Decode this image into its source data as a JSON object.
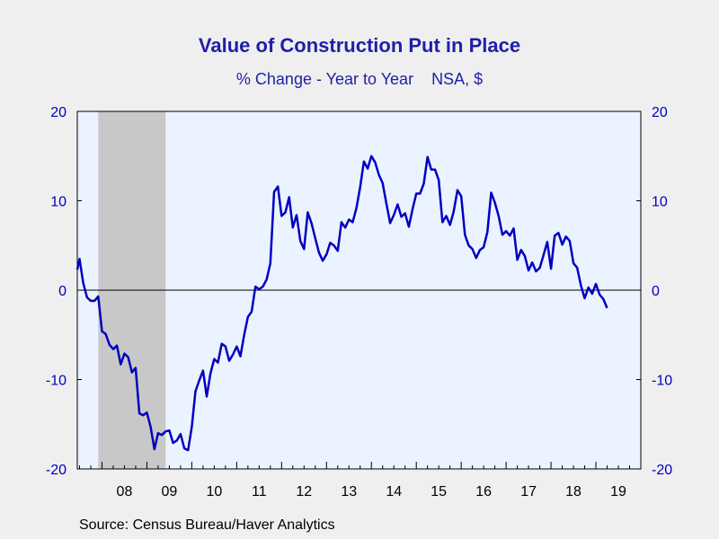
{
  "title": "Value of Construction Put in Place",
  "subtitle": "% Change - Year to Year    NSA, $",
  "source": "Source:  Census Bureau/Haver Analytics",
  "colors": {
    "line": "#0000c0",
    "plot_background": "#eaf3ff",
    "recession": "#c8c8c8",
    "axis_text": "#0000c0",
    "x_text": "#000000"
  },
  "chart_data": {
    "type": "line",
    "title": "Value of Construction Put in Place",
    "subtitle": "% Change - Year to Year    NSA, $",
    "xlabel": "",
    "ylabel": "",
    "xlim": [
      2007.45,
      2020.0
    ],
    "ylim": [
      -20,
      20
    ],
    "yticks": [
      -20,
      -10,
      0,
      10,
      20
    ],
    "ytick_labels": [
      "-20",
      "-10",
      "0",
      "10",
      "20"
    ],
    "xtick_labels": [
      "08",
      "09",
      "10",
      "11",
      "12",
      "13",
      "14",
      "15",
      "16",
      "17",
      "18",
      "19"
    ],
    "grid": false,
    "zero_line": true,
    "recession_shading": [
      [
        2007.917,
        2009.417
      ]
    ],
    "series": [
      {
        "values": [
          [
            2007.45,
            2.3
          ],
          [
            2007.5,
            3.5
          ],
          [
            2007.583,
            0.8
          ],
          [
            2007.667,
            -0.8
          ],
          [
            2007.75,
            -1.2
          ],
          [
            2007.833,
            -1.2
          ],
          [
            2007.917,
            -0.7
          ],
          [
            2008.0,
            -4.6
          ],
          [
            2008.083,
            -4.9
          ],
          [
            2008.167,
            -6.1
          ],
          [
            2008.25,
            -6.6
          ],
          [
            2008.333,
            -6.2
          ],
          [
            2008.417,
            -8.3
          ],
          [
            2008.5,
            -7.1
          ],
          [
            2008.583,
            -7.5
          ],
          [
            2008.667,
            -9.2
          ],
          [
            2008.75,
            -8.7
          ],
          [
            2008.833,
            -13.8
          ],
          [
            2008.917,
            -14.0
          ],
          [
            2009.0,
            -13.7
          ],
          [
            2009.083,
            -15.3
          ],
          [
            2009.167,
            -17.8
          ],
          [
            2009.25,
            -16.0
          ],
          [
            2009.333,
            -16.2
          ],
          [
            2009.417,
            -15.8
          ],
          [
            2009.5,
            -15.7
          ],
          [
            2009.583,
            -17.1
          ],
          [
            2009.667,
            -16.8
          ],
          [
            2009.75,
            -16.1
          ],
          [
            2009.833,
            -17.7
          ],
          [
            2009.917,
            -17.9
          ],
          [
            2010.0,
            -15.3
          ],
          [
            2010.083,
            -11.3
          ],
          [
            2010.167,
            -10.1
          ],
          [
            2010.25,
            -9.0
          ],
          [
            2010.333,
            -11.9
          ],
          [
            2010.417,
            -9.3
          ],
          [
            2010.5,
            -7.7
          ],
          [
            2010.583,
            -8.1
          ],
          [
            2010.667,
            -6.0
          ],
          [
            2010.75,
            -6.3
          ],
          [
            2010.833,
            -7.9
          ],
          [
            2010.917,
            -7.2
          ],
          [
            2011.0,
            -6.3
          ],
          [
            2011.083,
            -7.4
          ],
          [
            2011.167,
            -5.0
          ],
          [
            2011.25,
            -3.0
          ],
          [
            2011.333,
            -2.4
          ],
          [
            2011.417,
            0.4
          ],
          [
            2011.5,
            0.1
          ],
          [
            2011.583,
            0.4
          ],
          [
            2011.667,
            1.2
          ],
          [
            2011.75,
            3.0
          ],
          [
            2011.833,
            11.0
          ],
          [
            2011.917,
            11.6
          ],
          [
            2012.0,
            8.3
          ],
          [
            2012.083,
            8.7
          ],
          [
            2012.167,
            10.4
          ],
          [
            2012.25,
            7.0
          ],
          [
            2012.333,
            8.4
          ],
          [
            2012.417,
            5.5
          ],
          [
            2012.5,
            4.6
          ],
          [
            2012.583,
            8.7
          ],
          [
            2012.667,
            7.5
          ],
          [
            2012.75,
            5.8
          ],
          [
            2012.833,
            4.2
          ],
          [
            2012.917,
            3.3
          ],
          [
            2013.0,
            4.0
          ],
          [
            2013.083,
            5.3
          ],
          [
            2013.167,
            5.0
          ],
          [
            2013.25,
            4.4
          ],
          [
            2013.333,
            7.6
          ],
          [
            2013.417,
            7.0
          ],
          [
            2013.5,
            7.9
          ],
          [
            2013.583,
            7.6
          ],
          [
            2013.667,
            9.2
          ],
          [
            2013.75,
            11.5
          ],
          [
            2013.833,
            14.4
          ],
          [
            2013.917,
            13.6
          ],
          [
            2014.0,
            15.0
          ],
          [
            2014.083,
            14.3
          ],
          [
            2014.167,
            12.9
          ],
          [
            2014.25,
            12.0
          ],
          [
            2014.333,
            9.7
          ],
          [
            2014.417,
            7.5
          ],
          [
            2014.5,
            8.4
          ],
          [
            2014.583,
            9.6
          ],
          [
            2014.667,
            8.2
          ],
          [
            2014.75,
            8.6
          ],
          [
            2014.833,
            7.1
          ],
          [
            2014.917,
            9.1
          ],
          [
            2015.0,
            10.8
          ],
          [
            2015.083,
            10.8
          ],
          [
            2015.167,
            11.9
          ],
          [
            2015.25,
            14.9
          ],
          [
            2015.333,
            13.5
          ],
          [
            2015.417,
            13.5
          ],
          [
            2015.5,
            12.3
          ],
          [
            2015.583,
            7.6
          ],
          [
            2015.667,
            8.3
          ],
          [
            2015.75,
            7.3
          ],
          [
            2015.833,
            8.8
          ],
          [
            2015.917,
            11.2
          ],
          [
            2016.0,
            10.5
          ],
          [
            2016.083,
            6.2
          ],
          [
            2016.167,
            5.0
          ],
          [
            2016.25,
            4.6
          ],
          [
            2016.333,
            3.6
          ],
          [
            2016.417,
            4.5
          ],
          [
            2016.5,
            4.8
          ],
          [
            2016.583,
            6.5
          ],
          [
            2016.667,
            10.9
          ],
          [
            2016.75,
            9.8
          ],
          [
            2016.833,
            8.3
          ],
          [
            2016.917,
            6.2
          ],
          [
            2017.0,
            6.6
          ],
          [
            2017.083,
            6.1
          ],
          [
            2017.167,
            6.9
          ],
          [
            2017.25,
            3.4
          ],
          [
            2017.333,
            4.5
          ],
          [
            2017.417,
            3.8
          ],
          [
            2017.5,
            2.2
          ],
          [
            2017.583,
            3.1
          ],
          [
            2017.667,
            2.1
          ],
          [
            2017.75,
            2.5
          ],
          [
            2017.833,
            3.9
          ],
          [
            2017.917,
            5.4
          ],
          [
            2018.0,
            2.4
          ],
          [
            2018.083,
            6.1
          ],
          [
            2018.167,
            6.4
          ],
          [
            2018.25,
            5.1
          ],
          [
            2018.333,
            6.0
          ],
          [
            2018.417,
            5.5
          ],
          [
            2018.5,
            3.0
          ],
          [
            2018.583,
            2.5
          ],
          [
            2018.667,
            0.5
          ],
          [
            2018.75,
            -0.9
          ],
          [
            2018.833,
            0.3
          ],
          [
            2018.917,
            -0.4
          ],
          [
            2019.0,
            0.7
          ],
          [
            2019.083,
            -0.5
          ],
          [
            2019.167,
            -1.0
          ],
          [
            2019.25,
            -2.0
          ]
        ]
      }
    ]
  }
}
